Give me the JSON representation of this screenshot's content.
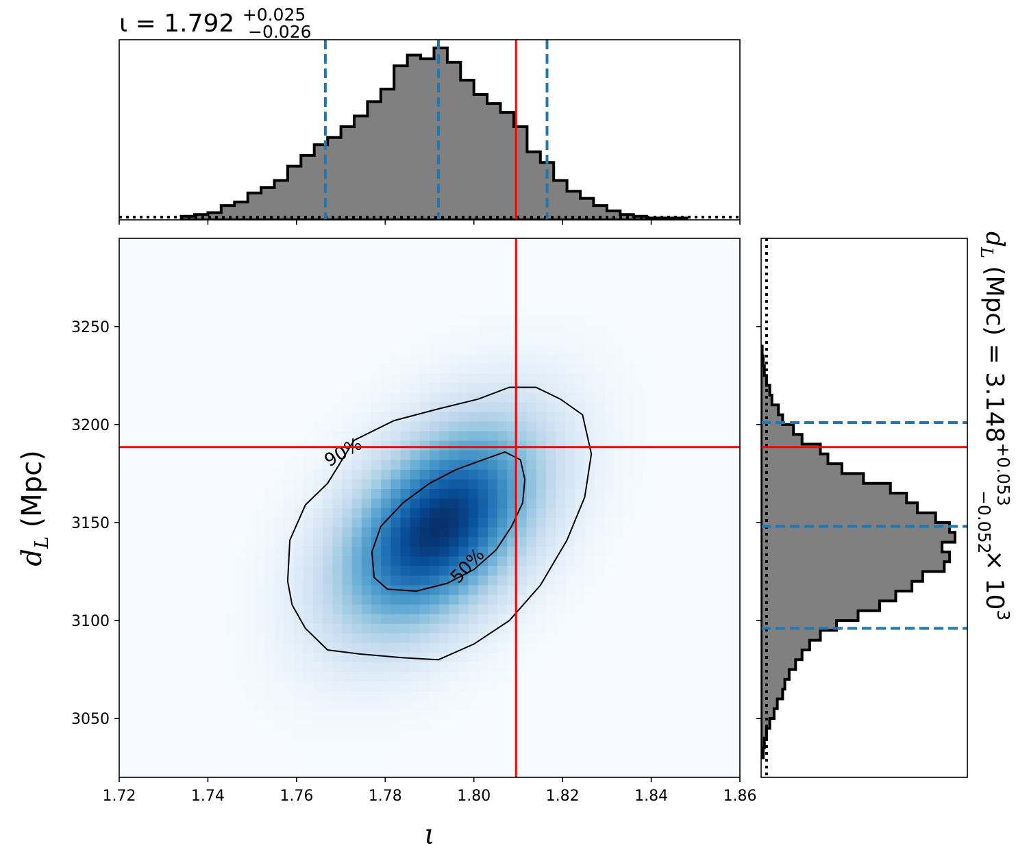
{
  "chart_data": {
    "type": "corner",
    "xlabel": "ι",
    "ylabel": "d_L (Mpc)",
    "xlim": [
      1.72,
      1.86
    ],
    "ylim": [
      3020,
      3295
    ],
    "x_ticks": [
      "1.72",
      "1.74",
      "1.76",
      "1.78",
      "1.80",
      "1.82",
      "1.84",
      "1.86"
    ],
    "x_tick_values": [
      1.72,
      1.74,
      1.76,
      1.78,
      1.8,
      1.82,
      1.84,
      1.86
    ],
    "y_ticks": [
      "3050",
      "3100",
      "3150",
      "3200",
      "3250"
    ],
    "y_tick_values": [
      3050,
      3100,
      3150,
      3200,
      3250
    ],
    "top_title": {
      "main": "ι = 1.792",
      "plus": "+0.025",
      "minus": "−0.026"
    },
    "right_title": {
      "prefix": "d",
      "sub": "L",
      "middle": " (Mpc) = 3.148",
      "plus": "+0.053",
      "minus": "−0.052",
      "suffix": " × 10",
      "exp": "3"
    },
    "true_value": {
      "iota": 1.8095,
      "d_L": 3188.5
    },
    "iota_quantiles": [
      1.7665,
      1.792,
      1.8165
    ],
    "dL_quantiles": [
      3096,
      3148,
      3201
    ],
    "peak": {
      "iota": 1.792,
      "d_L": 3148
    },
    "contours": [
      {
        "label": "50%",
        "level": 0.5,
        "path": [
          [
            1.7805,
            3116
          ],
          [
            1.787,
            3115
          ],
          [
            1.794,
            3119
          ],
          [
            1.8,
            3126
          ],
          [
            1.805,
            3136
          ],
          [
            1.8085,
            3148
          ],
          [
            1.811,
            3160
          ],
          [
            1.8115,
            3172
          ],
          [
            1.8105,
            3182
          ],
          [
            1.807,
            3186
          ],
          [
            1.802,
            3182
          ],
          [
            1.796,
            3177
          ],
          [
            1.79,
            3170
          ],
          [
            1.784,
            3160
          ],
          [
            1.779,
            3148
          ],
          [
            1.777,
            3135
          ],
          [
            1.7775,
            3122
          ],
          [
            1.7805,
            3116
          ]
        ]
      },
      {
        "label": "90%",
        "level": 0.9,
        "path": [
          [
            1.792,
            3080
          ],
          [
            1.8,
            3088
          ],
          [
            1.808,
            3100
          ],
          [
            1.815,
            3118
          ],
          [
            1.821,
            3141
          ],
          [
            1.825,
            3163
          ],
          [
            1.8265,
            3185
          ],
          [
            1.8245,
            3205
          ],
          [
            1.8195,
            3213
          ],
          [
            1.814,
            3219
          ],
          [
            1.808,
            3219
          ],
          [
            1.801,
            3213
          ],
          [
            1.792,
            3208
          ],
          [
            1.782,
            3202
          ],
          [
            1.773,
            3192
          ],
          [
            1.767,
            3170
          ],
          [
            1.762,
            3159
          ],
          [
            1.7585,
            3141
          ],
          [
            1.758,
            3120
          ],
          [
            1.759,
            3108
          ],
          [
            1.762,
            3096
          ],
          [
            1.767,
            3085
          ],
          [
            1.774,
            3083
          ],
          [
            1.784,
            3081
          ],
          [
            1.792,
            3080
          ]
        ]
      }
    ],
    "iota_histogram": {
      "bin_edges": [
        1.734,
        1.737,
        1.74,
        1.743,
        1.746,
        1.749,
        1.752,
        1.755,
        1.758,
        1.761,
        1.764,
        1.767,
        1.77,
        1.773,
        1.776,
        1.779,
        1.782,
        1.785,
        1.788,
        1.791,
        1.794,
        1.797,
        1.8,
        1.803,
        1.806,
        1.809,
        1.812,
        1.815,
        1.818,
        1.821,
        1.824,
        1.827,
        1.83,
        1.833,
        1.836,
        1.839,
        1.842,
        1.845,
        1.848
      ],
      "counts": [
        2,
        3,
        4,
        8,
        10,
        15,
        18,
        22,
        30,
        36,
        42,
        46,
        52,
        58,
        66,
        73,
        86,
        92,
        90,
        96,
        88,
        78,
        70,
        65,
        60,
        52,
        38,
        32,
        22,
        16,
        12,
        8,
        5,
        3,
        2,
        1,
        1,
        1
      ]
    },
    "dL_histogram": {
      "bin_edges": [
        3030,
        3035,
        3040,
        3045,
        3050,
        3055,
        3060,
        3065,
        3070,
        3075,
        3080,
        3085,
        3090,
        3095,
        3100,
        3105,
        3110,
        3115,
        3120,
        3125,
        3130,
        3135,
        3140,
        3145,
        3150,
        3155,
        3160,
        3165,
        3170,
        3175,
        3180,
        3185,
        3190,
        3195,
        3200,
        3205,
        3210,
        3215,
        3220,
        3225,
        3230,
        3235,
        3240
      ],
      "counts": [
        2,
        3,
        5,
        8,
        12,
        15,
        20,
        22,
        26,
        32,
        38,
        45,
        55,
        70,
        90,
        110,
        125,
        140,
        150,
        170,
        175,
        168,
        180,
        175,
        162,
        145,
        135,
        120,
        95,
        75,
        62,
        55,
        38,
        30,
        20,
        16,
        10,
        8,
        5,
        3,
        2,
        1
      ]
    }
  }
}
